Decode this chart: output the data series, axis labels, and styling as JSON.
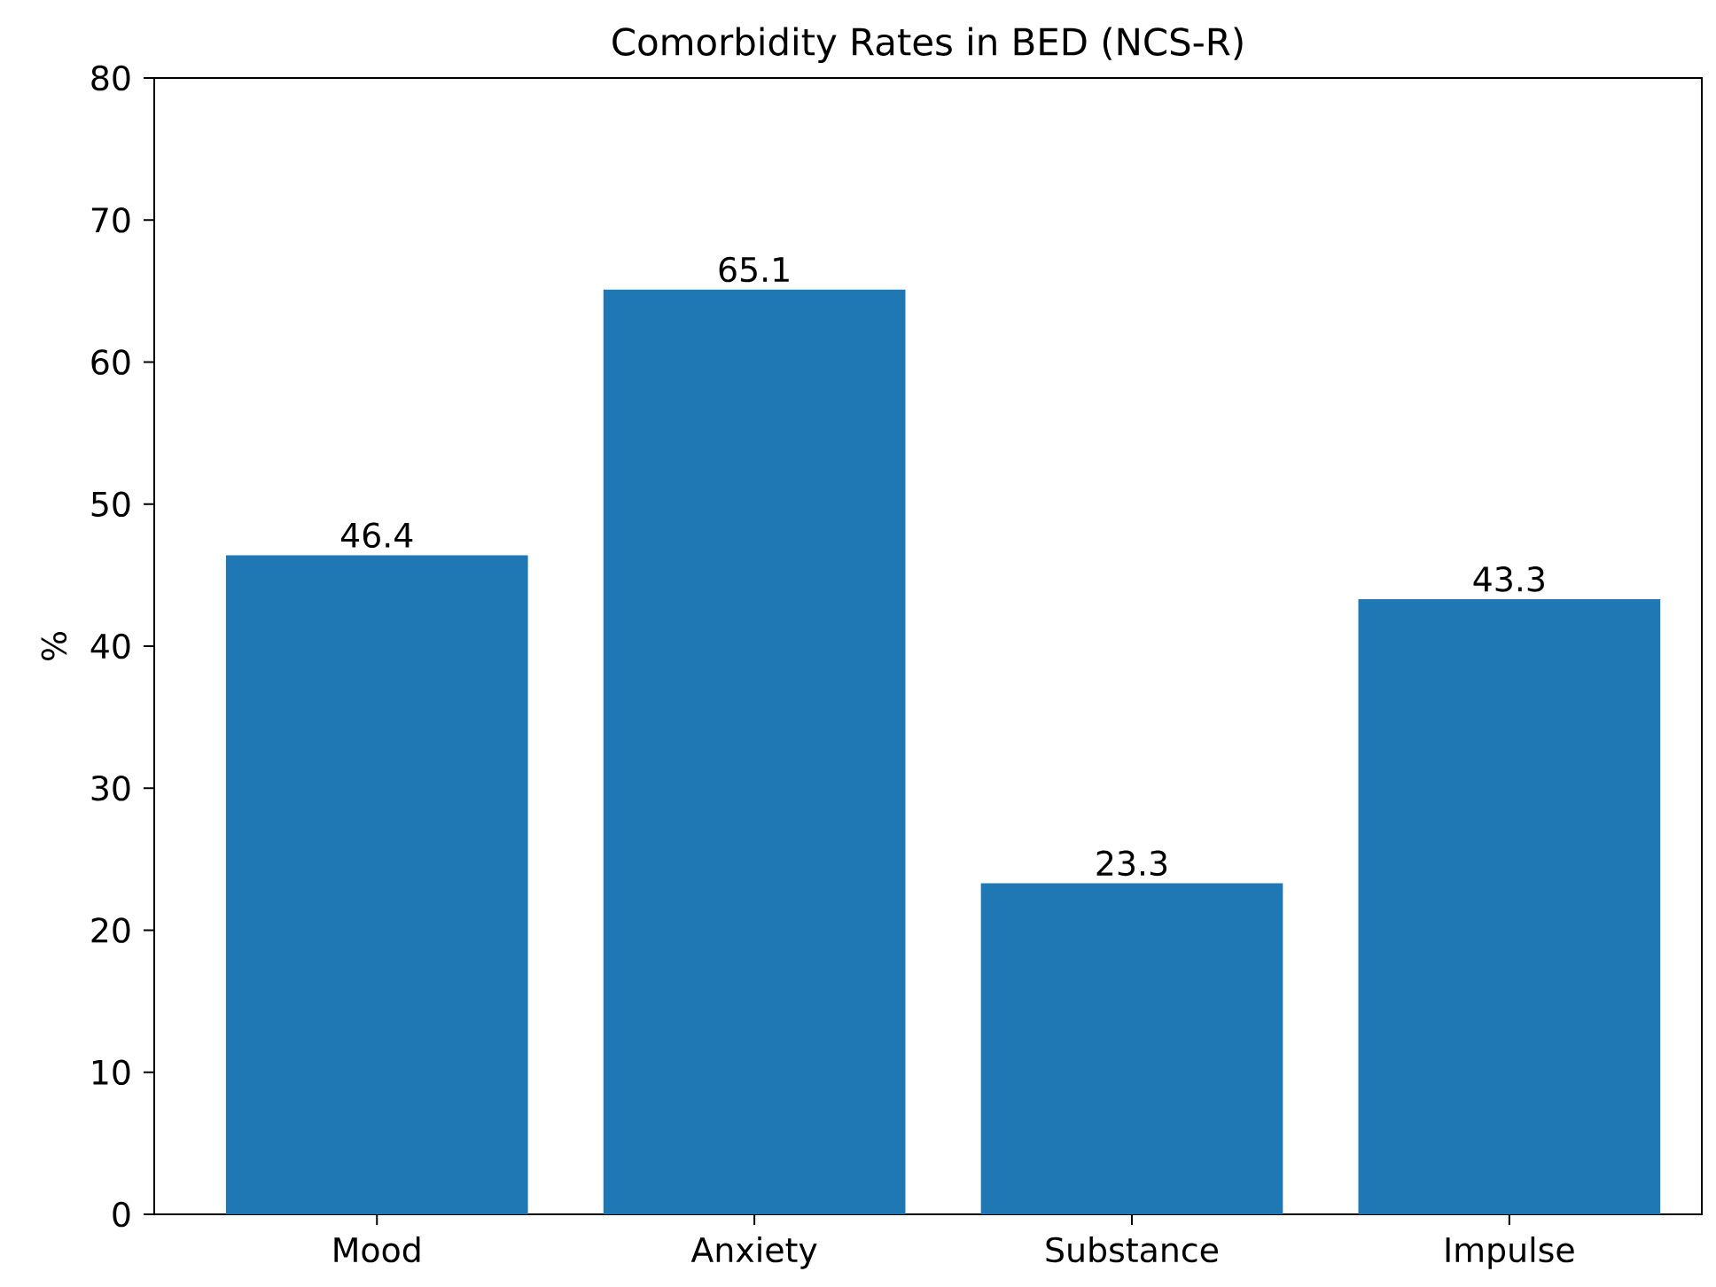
{
  "chart_data": {
    "type": "bar",
    "title": "Comorbidity Rates in BED (NCS-R)",
    "ylabel": "%",
    "categories": [
      "Mood",
      "Anxiety",
      "Substance",
      "Impulse"
    ],
    "values": [
      46.4,
      65.1,
      23.3,
      43.3
    ],
    "color": "#1f77b4",
    "ylim": [
      0,
      80
    ],
    "yticks": [
      0,
      10,
      20,
      30,
      40,
      50,
      60,
      70,
      80
    ],
    "data_labels": true
  }
}
